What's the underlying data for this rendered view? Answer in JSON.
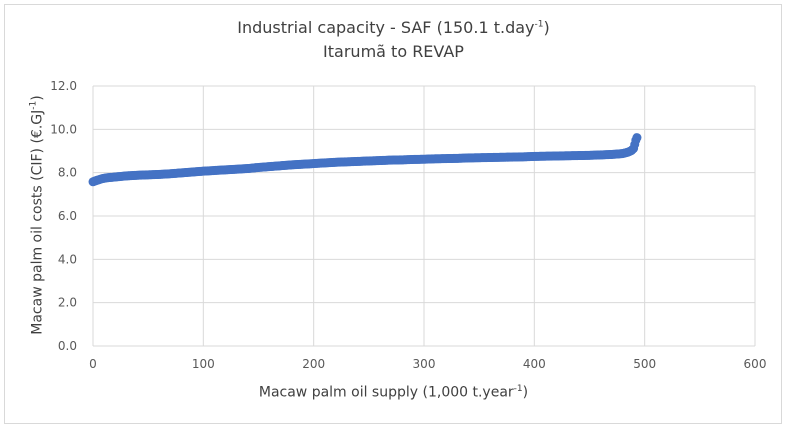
{
  "chart_data": {
    "type": "scatter",
    "title_main": "Industrial capacity - SAF (150.1 t.day",
    "title_sup": "-1",
    "title_end": ")",
    "subtitle": "Itarumã to REVAP",
    "xlabel_main": "Macaw palm oil supply (1,000 t.year",
    "xlabel_sup": "-1",
    "xlabel_end": ")",
    "ylabel_main": "Macaw palm oil costs (CIF) (€.GJ",
    "ylabel_sup": "-1",
    "ylabel_end": ")",
    "xlim": [
      0,
      600
    ],
    "ylim": [
      0,
      12
    ],
    "xticks": [
      "0",
      "100",
      "200",
      "300",
      "400",
      "500",
      "600"
    ],
    "yticks": [
      "0.0",
      "2.0",
      "4.0",
      "6.0",
      "8.0",
      "10.0",
      "12.0"
    ],
    "grid": true,
    "series": [
      {
        "color": "#4472c4",
        "x": [
          0,
          2,
          5,
          8,
          12,
          20,
          30,
          40,
          50,
          60,
          70,
          80,
          90,
          100,
          110,
          120,
          130,
          140,
          150,
          160,
          170,
          180,
          190,
          200,
          210,
          220,
          230,
          240,
          250,
          260,
          270,
          280,
          290,
          300,
          310,
          320,
          330,
          340,
          350,
          360,
          370,
          380,
          390,
          400,
          410,
          420,
          430,
          440,
          450,
          460,
          470,
          480,
          485,
          488,
          490,
          491,
          492,
          493
        ],
        "y": [
          7.58,
          7.62,
          7.67,
          7.72,
          7.76,
          7.8,
          7.85,
          7.88,
          7.9,
          7.92,
          7.95,
          7.99,
          8.03,
          8.07,
          8.1,
          8.13,
          8.16,
          8.19,
          8.24,
          8.28,
          8.32,
          8.36,
          8.39,
          8.42,
          8.45,
          8.48,
          8.5,
          8.52,
          8.54,
          8.56,
          8.58,
          8.59,
          8.61,
          8.62,
          8.64,
          8.65,
          8.66,
          8.68,
          8.69,
          8.7,
          8.71,
          8.72,
          8.73,
          8.75,
          8.76,
          8.77,
          8.78,
          8.79,
          8.8,
          8.82,
          8.84,
          8.88,
          8.95,
          9.02,
          9.12,
          9.3,
          9.5,
          9.62
        ]
      }
    ]
  }
}
